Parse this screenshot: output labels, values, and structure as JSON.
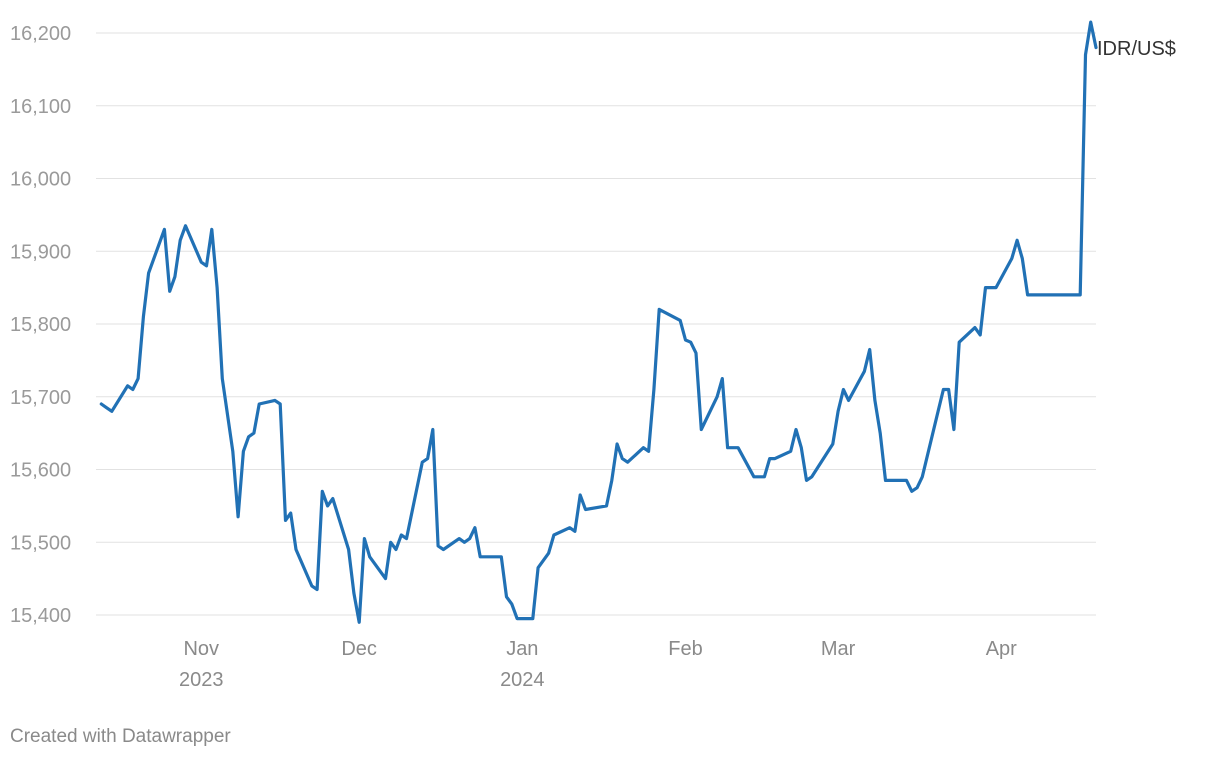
{
  "chart_data": {
    "type": "line",
    "series_label": "IDR/US$",
    "ylim": [
      15400,
      16200
    ],
    "yticks": [
      15400,
      15500,
      15600,
      15700,
      15800,
      15900,
      16000,
      16100,
      16200
    ],
    "ytick_labels": [
      "15,400",
      "15,500",
      "15,600",
      "15,700",
      "15,800",
      "15,900",
      "16,000",
      "16,100",
      "16,200"
    ],
    "xlim": [
      "2023-10-12",
      "2024-04-19"
    ],
    "xticks": [
      {
        "date": "2023-11-01",
        "label": "Nov",
        "sublabel": "2023"
      },
      {
        "date": "2023-12-01",
        "label": "Dec",
        "sublabel": ""
      },
      {
        "date": "2024-01-01",
        "label": "Jan",
        "sublabel": "2024"
      },
      {
        "date": "2024-02-01",
        "label": "Feb",
        "sublabel": ""
      },
      {
        "date": "2024-03-01",
        "label": "Mar",
        "sublabel": ""
      },
      {
        "date": "2024-04-01",
        "label": "Apr",
        "sublabel": ""
      }
    ],
    "grid": true,
    "color": "#2171b5",
    "points": [
      [
        "2023-10-13",
        15690
      ],
      [
        "2023-10-14",
        15685
      ],
      [
        "2023-10-15",
        15680
      ],
      [
        "2023-10-18",
        15715
      ],
      [
        "2023-10-19",
        15710
      ],
      [
        "2023-10-20",
        15725
      ],
      [
        "2023-10-21",
        15810
      ],
      [
        "2023-10-22",
        15870
      ],
      [
        "2023-10-25",
        15930
      ],
      [
        "2023-10-26",
        15845
      ],
      [
        "2023-10-27",
        15865
      ],
      [
        "2023-10-28",
        15915
      ],
      [
        "2023-10-29",
        15935
      ],
      [
        "2023-11-01",
        15885
      ],
      [
        "2023-11-02",
        15880
      ],
      [
        "2023-11-03",
        15930
      ],
      [
        "2023-11-04",
        15850
      ],
      [
        "2023-11-05",
        15725
      ],
      [
        "2023-11-07",
        15625
      ],
      [
        "2023-11-08",
        15535
      ],
      [
        "2023-11-09",
        15625
      ],
      [
        "2023-11-10",
        15645
      ],
      [
        "2023-11-11",
        15650
      ],
      [
        "2023-11-12",
        15690
      ],
      [
        "2023-11-15",
        15695
      ],
      [
        "2023-11-16",
        15690
      ],
      [
        "2023-11-17",
        15530
      ],
      [
        "2023-11-18",
        15540
      ],
      [
        "2023-11-19",
        15490
      ],
      [
        "2023-11-22",
        15440
      ],
      [
        "2023-11-23",
        15435
      ],
      [
        "2023-11-24",
        15570
      ],
      [
        "2023-11-25",
        15550
      ],
      [
        "2023-11-26",
        15560
      ],
      [
        "2023-11-29",
        15490
      ],
      [
        "2023-11-30",
        15430
      ],
      [
        "2023-12-01",
        15390
      ],
      [
        "2023-12-02",
        15505
      ],
      [
        "2023-12-03",
        15480
      ],
      [
        "2023-12-06",
        15450
      ],
      [
        "2023-12-07",
        15500
      ],
      [
        "2023-12-08",
        15490
      ],
      [
        "2023-12-09",
        15510
      ],
      [
        "2023-12-10",
        15505
      ],
      [
        "2023-12-13",
        15610
      ],
      [
        "2023-12-14",
        15615
      ],
      [
        "2023-12-15",
        15655
      ],
      [
        "2023-12-16",
        15495
      ],
      [
        "2023-12-17",
        15490
      ],
      [
        "2023-12-20",
        15505
      ],
      [
        "2023-12-21",
        15500
      ],
      [
        "2023-12-22",
        15505
      ],
      [
        "2023-12-23",
        15520
      ],
      [
        "2023-12-24",
        15480
      ],
      [
        "2023-12-28",
        15480
      ],
      [
        "2023-12-29",
        15425
      ],
      [
        "2023-12-30",
        15415
      ],
      [
        "2023-12-31",
        15395
      ],
      [
        "2024-01-03",
        15395
      ],
      [
        "2024-01-04",
        15465
      ],
      [
        "2024-01-06",
        15485
      ],
      [
        "2024-01-07",
        15510
      ],
      [
        "2024-01-10",
        15520
      ],
      [
        "2024-01-11",
        15515
      ],
      [
        "2024-01-12",
        15565
      ],
      [
        "2024-01-13",
        15545
      ],
      [
        "2024-01-17",
        15550
      ],
      [
        "2024-01-18",
        15585
      ],
      [
        "2024-01-19",
        15635
      ],
      [
        "2024-01-20",
        15615
      ],
      [
        "2024-01-21",
        15610
      ],
      [
        "2024-01-24",
        15630
      ],
      [
        "2024-01-25",
        15625
      ],
      [
        "2024-01-26",
        15710
      ],
      [
        "2024-01-27",
        15820
      ],
      [
        "2024-01-31",
        15805
      ],
      [
        "2024-02-01",
        15778
      ],
      [
        "2024-02-02",
        15775
      ],
      [
        "2024-02-03",
        15760
      ],
      [
        "2024-02-04",
        15655
      ],
      [
        "2024-02-07",
        15700
      ],
      [
        "2024-02-08",
        15725
      ],
      [
        "2024-02-09",
        15630
      ],
      [
        "2024-02-11",
        15630
      ],
      [
        "2024-02-14",
        15590
      ],
      [
        "2024-02-16",
        15590
      ],
      [
        "2024-02-17",
        15615
      ],
      [
        "2024-02-18",
        15615
      ],
      [
        "2024-02-21",
        15625
      ],
      [
        "2024-02-22",
        15655
      ],
      [
        "2024-02-23",
        15630
      ],
      [
        "2024-02-24",
        15585
      ],
      [
        "2024-02-25",
        15590
      ],
      [
        "2024-02-29",
        15635
      ],
      [
        "2024-03-01",
        15680
      ],
      [
        "2024-03-02",
        15710
      ],
      [
        "2024-03-03",
        15695
      ],
      [
        "2024-03-06",
        15735
      ],
      [
        "2024-03-07",
        15765
      ],
      [
        "2024-03-08",
        15695
      ],
      [
        "2024-03-09",
        15650
      ],
      [
        "2024-03-10",
        15585
      ],
      [
        "2024-03-14",
        15585
      ],
      [
        "2024-03-15",
        15570
      ],
      [
        "2024-03-16",
        15575
      ],
      [
        "2024-03-17",
        15590
      ],
      [
        "2024-03-20",
        15680
      ],
      [
        "2024-03-21",
        15710
      ],
      [
        "2024-03-22",
        15710
      ],
      [
        "2024-03-23",
        15655
      ],
      [
        "2024-03-24",
        15775
      ],
      [
        "2024-03-27",
        15795
      ],
      [
        "2024-03-28",
        15785
      ],
      [
        "2024-03-29",
        15850
      ],
      [
        "2024-03-31",
        15850
      ],
      [
        "2024-04-03",
        15890
      ],
      [
        "2024-04-04",
        15915
      ],
      [
        "2024-04-05",
        15890
      ],
      [
        "2024-04-06",
        15840
      ],
      [
        "2024-04-16",
        15840
      ],
      [
        "2024-04-17",
        16170
      ],
      [
        "2024-04-18",
        16215
      ],
      [
        "2024-04-19",
        16180
      ]
    ]
  },
  "footer": "Created with Datawrapper"
}
